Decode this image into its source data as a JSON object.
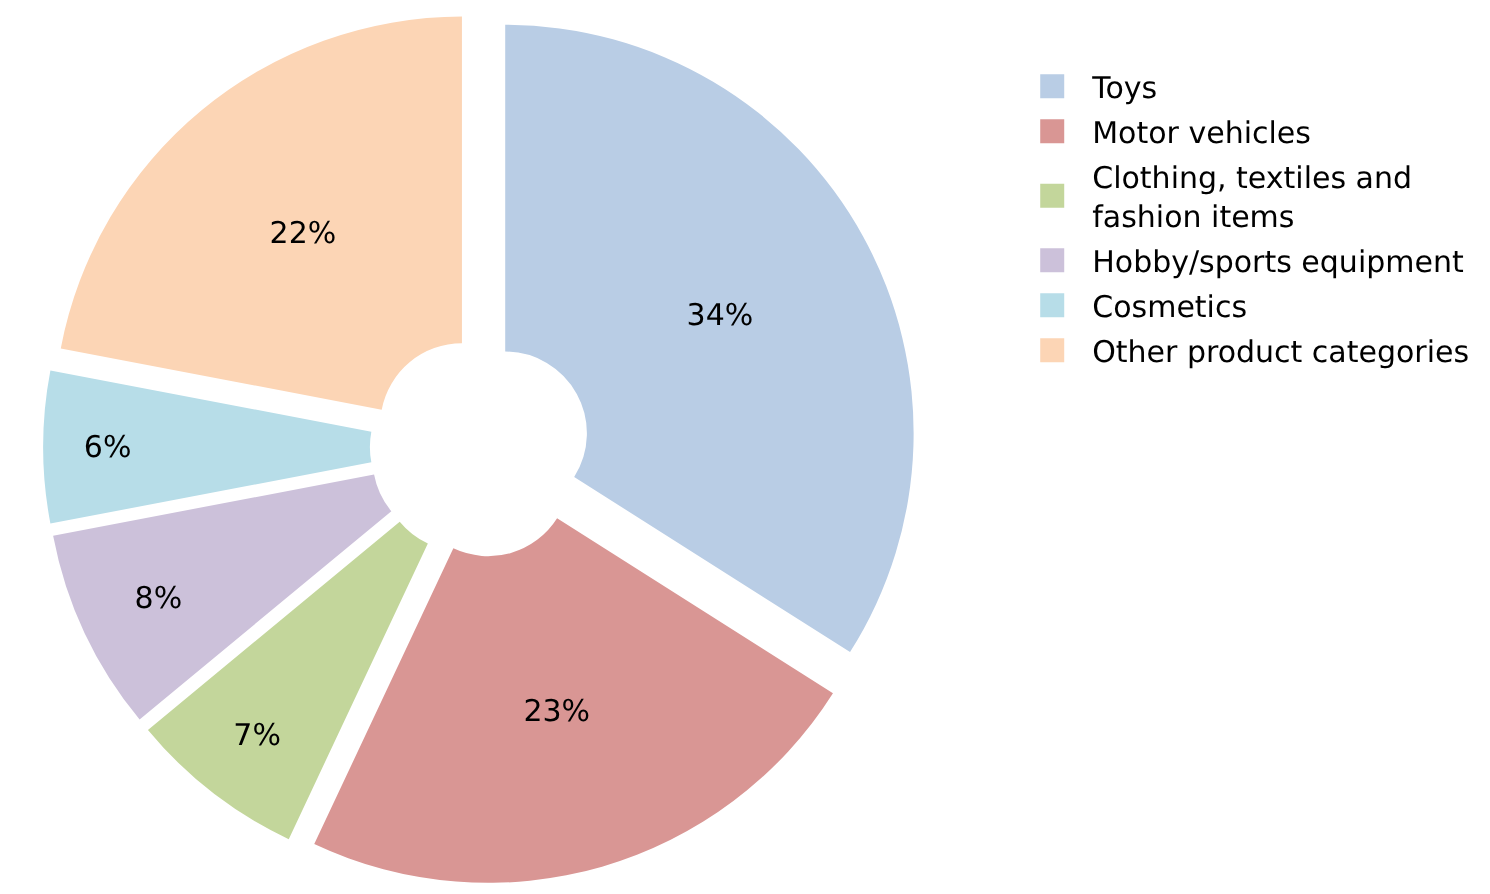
{
  "chart_data": {
    "type": "donut",
    "categories": [
      "Toys",
      "Motor vehicles",
      "Clothing, textiles and fashion items",
      "Hobby/sports equipment",
      "Cosmetics",
      "Other product categories"
    ],
    "values": [
      34,
      23,
      7,
      8,
      6,
      22
    ],
    "value_labels": [
      "34%",
      "23%",
      "7%",
      "8%",
      "6%",
      "22%"
    ],
    "colors": [
      "#b9cde5",
      "#d99694",
      "#c3d69b",
      "#ccc1da",
      "#b7dde8",
      "#fcd5b5"
    ],
    "legend": "right"
  }
}
